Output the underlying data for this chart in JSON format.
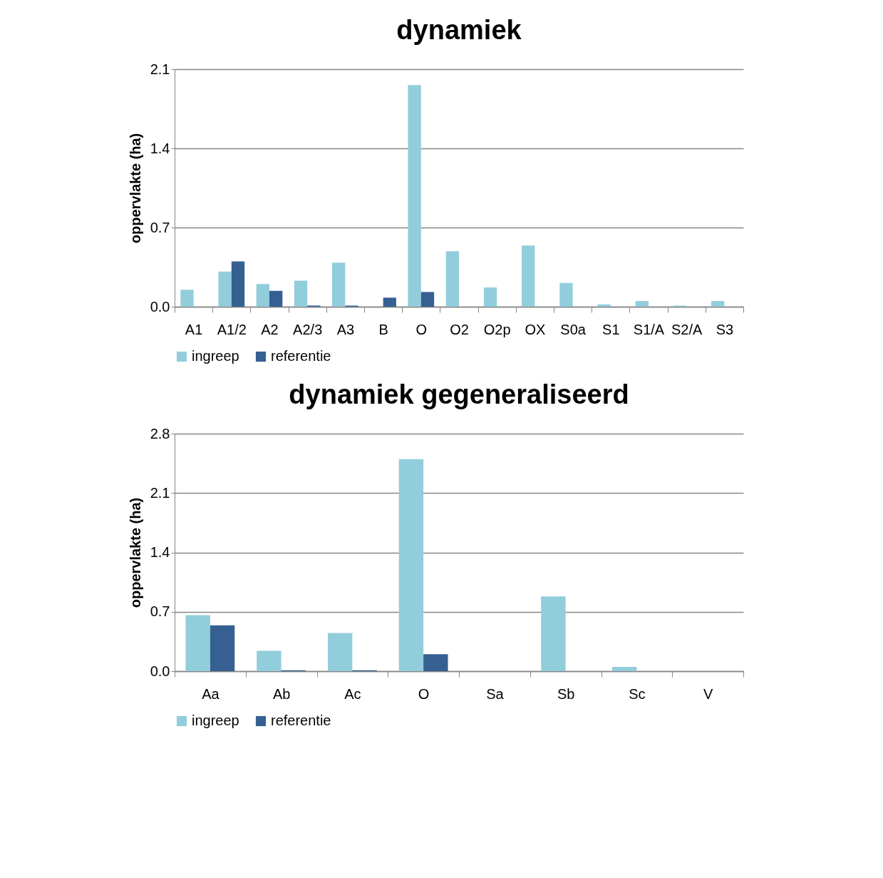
{
  "chart_data": [
    {
      "type": "bar",
      "title": "dynamiek",
      "ylabel": "oppervlakte (ha)",
      "categories": [
        "A1",
        "A1/2",
        "A2",
        "A2/3",
        "A3",
        "B",
        "O",
        "O2",
        "O2p",
        "OX",
        "S0a",
        "S1",
        "S1/A",
        "S2/A",
        "S3"
      ],
      "series": [
        {
          "name": "ingreep",
          "color": "#92cddc",
          "values": [
            0.15,
            0.31,
            0.2,
            0.23,
            0.39,
            0,
            1.96,
            0.49,
            0.17,
            0.54,
            0.21,
            0.02,
            0.05,
            0.01,
            0.05
          ]
        },
        {
          "name": "referentie",
          "color": "#366092",
          "values": [
            0,
            0.4,
            0.14,
            0.01,
            0.01,
            0.08,
            0.13,
            0,
            0,
            0,
            0,
            0,
            0,
            0,
            0
          ]
        }
      ],
      "ylim": [
        0,
        2.1
      ],
      "yticks": [
        {
          "value": 0,
          "label": "0.0"
        },
        {
          "value": 0.7,
          "label": "0.7"
        },
        {
          "value": 1.4,
          "label": "1.4"
        },
        {
          "value": 2.1,
          "label": "2.1"
        }
      ],
      "grid": "y",
      "legend": "bottom"
    },
    {
      "type": "bar",
      "title": "dynamiek gegeneraliseerd",
      "ylabel": "oppervlakte (ha)",
      "categories": [
        "Aa",
        "Ab",
        "Ac",
        "O",
        "Sa",
        "Sb",
        "Sc",
        "V"
      ],
      "series": [
        {
          "name": "ingreep",
          "color": "#92cddc",
          "values": [
            0.66,
            0.24,
            0.45,
            2.5,
            0,
            0.88,
            0.05,
            0
          ]
        },
        {
          "name": "referentie",
          "color": "#366092",
          "values": [
            0.54,
            0.01,
            0.01,
            0.2,
            0,
            0,
            0,
            0
          ]
        }
      ],
      "ylim": [
        0,
        2.8
      ],
      "yticks": [
        {
          "value": 0,
          "label": "0.0"
        },
        {
          "value": 0.7,
          "label": "0.7"
        },
        {
          "value": 1.4,
          "label": "1.4"
        },
        {
          "value": 2.1,
          "label": "2.1"
        },
        {
          "value": 2.8,
          "label": "2.8"
        }
      ],
      "grid": "y",
      "legend": "bottom"
    }
  ]
}
